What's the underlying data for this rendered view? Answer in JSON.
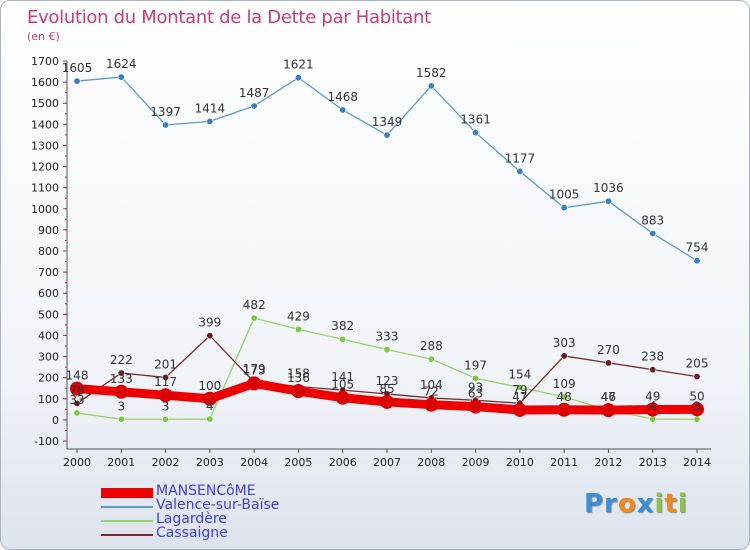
{
  "title": "Evolution du Montant de la Dette par Habitant",
  "subtitle": "(en €)",
  "logo": {
    "parts": [
      {
        "text": "Pr",
        "color": "#3a8fd6"
      },
      {
        "text": "o",
        "color": "#f08a1c"
      },
      {
        "text": "x",
        "color": "#3a8fd6"
      },
      {
        "text": "i",
        "color": "#8bc34a"
      },
      {
        "text": "t",
        "color": "#f08a1c"
      },
      {
        "text": "i",
        "color": "#8bc34a"
      }
    ]
  },
  "chart_data": {
    "type": "line",
    "x": [
      2000,
      2001,
      2002,
      2003,
      2004,
      2005,
      2006,
      2007,
      2008,
      2009,
      2010,
      2011,
      2012,
      2013,
      2014
    ],
    "ylim": [
      -100,
      1700
    ],
    "yticks": [
      -100,
      0,
      100,
      200,
      300,
      400,
      500,
      600,
      700,
      800,
      900,
      1000,
      1100,
      1200,
      1300,
      1400,
      1500,
      1600,
      1700
    ],
    "grid": false,
    "legend_position": "bottom-left",
    "series": [
      {
        "name": "Valence-sur-Baïse",
        "color": "#5b9bd5",
        "marker": "#3a7fc4",
        "values": [
          1605,
          1624,
          1397,
          1414,
          1487,
          1621,
          1468,
          1349,
          1582,
          1361,
          1177,
          1005,
          1036,
          883,
          754
        ]
      },
      {
        "name": "Lagardère",
        "color": "#99d36b",
        "marker": "#7ac943",
        "values": [
          33,
          3,
          3,
          4,
          482,
          429,
          382,
          333,
          288,
          197,
          154,
          109,
          47,
          4,
          3
        ]
      },
      {
        "name": "Cassaigne",
        "color": "#7a2a2a",
        "marker": "#6b1a1a",
        "values": [
          78,
          222,
          201,
          399,
          179,
          158,
          141,
          123,
          104,
          93,
          79,
          303,
          270,
          238,
          205
        ]
      },
      {
        "name": "MANSENCôME",
        "color": "#ee0000",
        "marker": "#dd0000",
        "values": [
          148,
          133,
          117,
          100,
          173,
          136,
          105,
          85,
          72,
          63,
          47,
          48,
          46,
          49,
          50
        ]
      }
    ],
    "labels": [
      {
        "series": 0,
        "values": [
          "1605",
          "1624",
          "1397",
          "1414",
          "1487",
          "1621",
          "1468",
          "1349",
          "1582",
          "1361",
          "1177",
          "1005",
          "1036",
          "883",
          "754"
        ]
      },
      {
        "series": 1,
        "values": [
          "33",
          "3",
          "3",
          "4",
          "482",
          "429",
          "382",
          "333",
          "288",
          "197",
          "154",
          "109",
          "47",
          "4",
          "3"
        ]
      },
      {
        "series": 2,
        "values": [
          "78",
          "222",
          "201",
          "399",
          "179",
          "158",
          "141",
          "123",
          "104",
          "93",
          "79",
          "303",
          "270",
          "238",
          "205"
        ]
      },
      {
        "series": 3,
        "values": [
          "148",
          "133",
          "117",
          "100",
          "173",
          "136",
          "105",
          "85",
          "72",
          "63",
          "47",
          "48",
          "46",
          "49",
          "50"
        ]
      }
    ]
  },
  "legend": [
    {
      "label": "MANSENCôME",
      "color": "#ee0000",
      "thick": true
    },
    {
      "label": "Valence-sur-Baïse",
      "color": "#5b9bd5",
      "thick": false
    },
    {
      "label": "Lagardère",
      "color": "#99d36b",
      "thick": false
    },
    {
      "label": "Cassaigne",
      "color": "#7a2a2a",
      "thick": false
    }
  ]
}
